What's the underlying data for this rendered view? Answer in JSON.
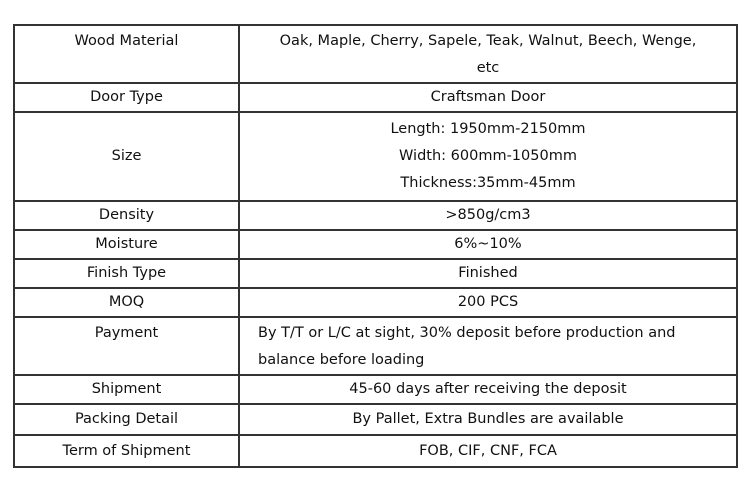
{
  "rows": [
    {
      "label": "Wood Material",
      "value": [
        "Oak, Maple, Cherry, Sapele, Teak, Walnut, Beech, Wenge,",
        "etc"
      ]
    },
    {
      "label": "Door Type",
      "value": [
        "Craftsman Door"
      ]
    },
    {
      "label": "Size",
      "value": [
        "Length: 1950mm-2150mm",
        "Width: 600mm-1050mm",
        "Thickness:35mm-45mm"
      ]
    },
    {
      "label": "Density",
      "value": [
        ">850g/cm3"
      ]
    },
    {
      "label": "Moisture",
      "value": [
        "6%~10%"
      ]
    },
    {
      "label": "Finish Type",
      "value": [
        "Finished"
      ]
    },
    {
      "label": "MOQ",
      "value": [
        "200 PCS"
      ]
    },
    {
      "label": "Payment",
      "value": [
        "By T/T or L/C at sight, 30% deposit before production and",
        "balance before loading"
      ]
    },
    {
      "label": "Shipment",
      "value": [
        "45-60 days after receiving the deposit"
      ]
    },
    {
      "label": "Packing Detail",
      "value": [
        "By Pallet, Extra Bundles are available"
      ]
    },
    {
      "label": "Term of Shipment",
      "value": [
        "FOB, CIF, CNF, FCA"
      ]
    }
  ]
}
